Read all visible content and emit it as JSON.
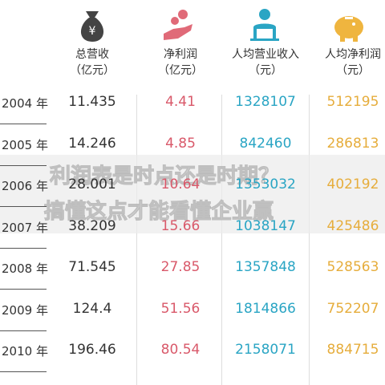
{
  "headers": [
    {
      "title": "总营收",
      "unit": "（亿元）"
    },
    {
      "title": "净利润",
      "unit": "（亿元）"
    },
    {
      "title": "人均营业收入",
      "unit": "（元）"
    },
    {
      "title": "人均净利润",
      "unit": "（元）"
    }
  ],
  "rows": [
    [
      "2004 年",
      "11.435",
      "4.41",
      "1328107",
      "512195"
    ],
    [
      "2005 年",
      "14.246",
      "4.85",
      "842460",
      "286813"
    ],
    [
      "2006 年",
      "28.001",
      "10.64",
      "1353032",
      "402192"
    ],
    [
      "2007 年",
      "38.209",
      "15.66",
      "1038147",
      "425486"
    ],
    [
      "2008 年",
      "71.545",
      "27.85",
      "1357848",
      "528563"
    ],
    [
      "2009 年",
      "124.4",
      "51.56",
      "1814866",
      "752207"
    ],
    [
      "2010 年",
      "196.46",
      "80.54",
      "2158071",
      "884715"
    ]
  ],
  "overlay": [
    "利润表是时点还是时期？",
    "搞懂这点才能看懂企业赢"
  ]
}
